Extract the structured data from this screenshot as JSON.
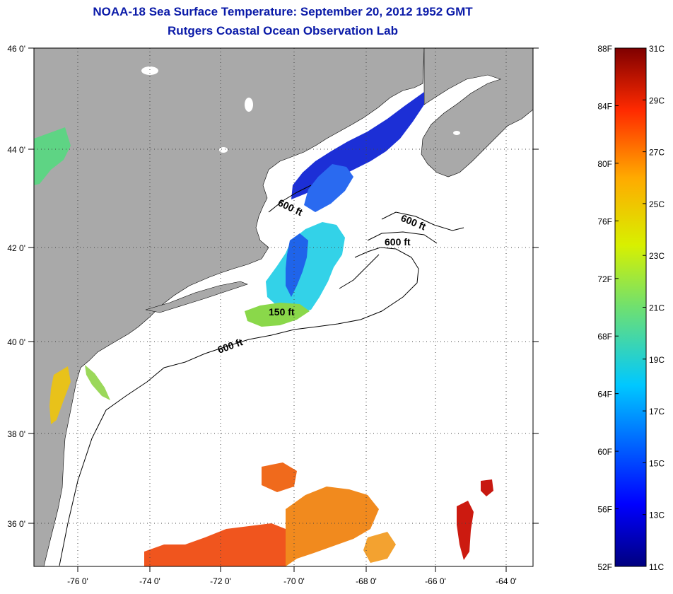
{
  "title": {
    "line1": "NOAA-18 Sea Surface Temperature:  September 20, 2012 1952 GMT",
    "line2": "Rutgers Coastal Ocean Observation Lab"
  },
  "map": {
    "lat_labels": [
      "46 0'",
      "44 0'",
      "42 0'",
      "40 0'",
      "38 0'",
      "36 0'"
    ],
    "lon_labels": [
      "-76 0'",
      "-74 0'",
      "-72 0'",
      "-70 0'",
      "-68 0'",
      "-66 0'",
      "-64 0'"
    ],
    "contour_labels": [
      "600 ft",
      "600 ft",
      "600 ft",
      "600 ft",
      "150 ft"
    ],
    "colors": {
      "land": "#a9a9a9",
      "ocean_nodata": "#ffffff",
      "grid": "#444444"
    }
  },
  "colorbar": {
    "fahrenheit_labels": [
      "88F",
      "84F",
      "80F",
      "76F",
      "72F",
      "68F",
      "64F",
      "60F",
      "56F",
      "52F"
    ],
    "celsius_labels": [
      "31C",
      "29C",
      "27C",
      "25C",
      "23C",
      "21C",
      "19C",
      "17C",
      "15C",
      "13C",
      "11C"
    ],
    "range_c": [
      11,
      31
    ],
    "range_f": [
      52,
      88
    ]
  }
}
